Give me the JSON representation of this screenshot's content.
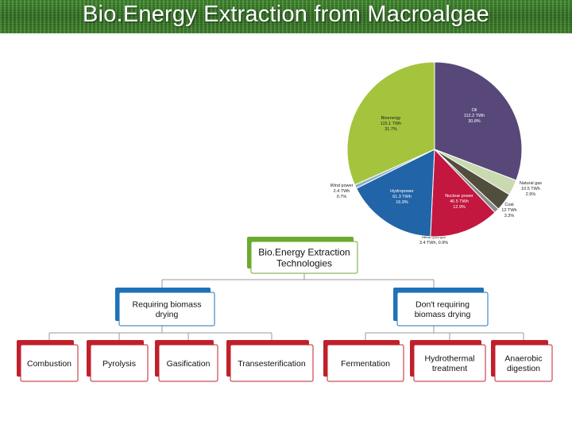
{
  "title": "Bio.Energy Extraction from Macroalgae",
  "colors": {
    "title_bg": "#3a7d27",
    "root_accent": "#6aab2e",
    "branch_accent": "#1f72b8",
    "leaf_accent": "#c0202a",
    "connector": "#9a9a9a"
  },
  "chart_data": {
    "type": "pie",
    "slices": [
      {
        "label": "Oil",
        "value_text": "112.2 TWh",
        "pct_text": "30.8%",
        "value": 30.8,
        "color": "#574879"
      },
      {
        "label": "Natural gas",
        "value_text": "10.5 TWh",
        "pct_text": "2.9%",
        "value": 2.9,
        "color": "#c9dab0"
      },
      {
        "label": "Coal",
        "value_text": "12 TWh",
        "pct_text": "3.3%",
        "value": 3.3,
        "color": "#524e3e"
      },
      {
        "label": "Heat pumps",
        "value_text": "3.4 TWh",
        "pct_text": "0.9%",
        "value": 0.9,
        "color": "#8a8a8a"
      },
      {
        "label": "Nuclear power",
        "value_text": "46.5 TWh",
        "pct_text": "12.9%",
        "value": 12.9,
        "color": "#c3173f"
      },
      {
        "label": "Hydropower",
        "value_text": "61.3 TWh",
        "pct_text": "16.9%",
        "value": 16.9,
        "color": "#2164a8"
      },
      {
        "label": "Wind power",
        "value_text": "2.4 TWh",
        "pct_text": "0.7%",
        "value": 0.7,
        "color": "#8fb2cf"
      },
      {
        "label": "Bioenergy",
        "value_text": "115.1 TWh",
        "pct_text": "31.7%",
        "value": 31.7,
        "color": "#a4c43d"
      }
    ]
  },
  "tree": {
    "root": "Bio.Energy Extraction Technologies",
    "branches": [
      {
        "label": "Requiring biomass drying",
        "leaves": [
          "Combustion",
          "Pyrolysis",
          "Gasification",
          "Transesterification"
        ]
      },
      {
        "label": "Don't requiring biomass drying",
        "leaves": [
          "Fermentation",
          "Hydrothermal treatment",
          "Anaerobic digestion"
        ]
      }
    ]
  }
}
